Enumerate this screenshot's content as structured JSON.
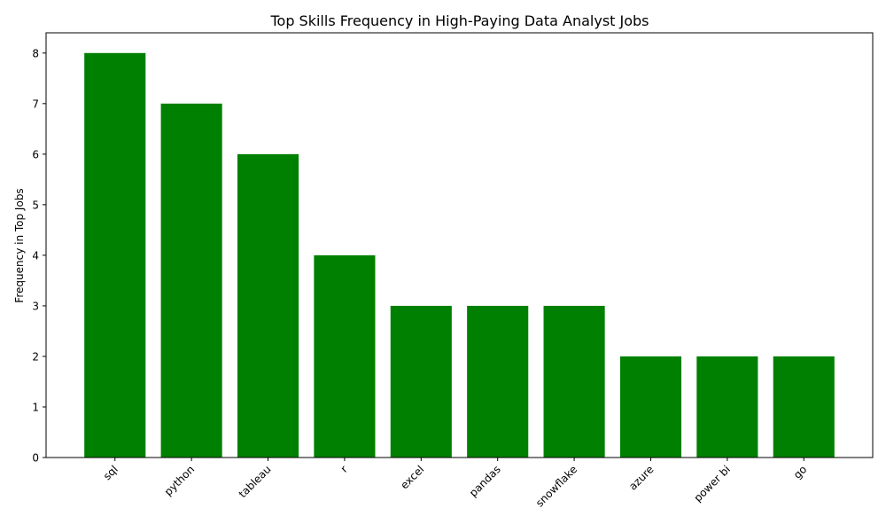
{
  "chart_data": {
    "type": "bar",
    "title": "Top Skills Frequency in High-Paying Data Analyst Jobs",
    "xlabel": "",
    "ylabel": "Frequency in Top Jobs",
    "categories": [
      "sql",
      "python",
      "tableau",
      "r",
      "excel",
      "pandas",
      "snowflake",
      "azure",
      "power bi",
      "go"
    ],
    "values": [
      8,
      7,
      6,
      4,
      3,
      3,
      3,
      2,
      2,
      2
    ],
    "ylim": [
      0,
      8.4
    ],
    "yticks": [
      0,
      1,
      2,
      3,
      4,
      5,
      6,
      7,
      8
    ],
    "bar_color": "#008000",
    "grid": false,
    "legend": "none",
    "x_tick_rotation": "45 degrees"
  }
}
